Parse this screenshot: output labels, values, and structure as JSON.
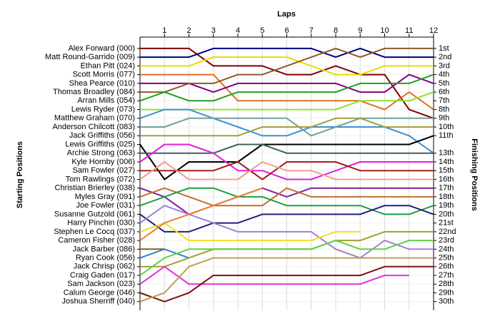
{
  "chart_data": {
    "type": "lap",
    "title": "Laps",
    "y_label": "Starting Positions",
    "y2_label": "Finishing Positions",
    "x": [
      0,
      1,
      2,
      3,
      4,
      5,
      6,
      7,
      8,
      9,
      10,
      11,
      12
    ],
    "xlim": [
      0,
      12
    ],
    "xticks": [
      1,
      2,
      3,
      4,
      5,
      6,
      7,
      8,
      9,
      10,
      11,
      12
    ],
    "ylim": [
      -0.3,
      31
    ],
    "yticks": [
      {
        "value": 1,
        "label": "1st"
      },
      {
        "value": 2,
        "label": "2nd"
      },
      {
        "value": 3,
        "label": "3rd"
      },
      {
        "value": 4,
        "label": "4th"
      },
      {
        "value": 5,
        "label": "5th"
      },
      {
        "value": 6,
        "label": "6th"
      },
      {
        "value": 7,
        "label": "7th"
      },
      {
        "value": 8,
        "label": "8th"
      },
      {
        "value": 9,
        "label": "9th"
      },
      {
        "value": 10,
        "label": "10th"
      },
      {
        "value": 11,
        "label": "11th"
      },
      {
        "value": 13,
        "label": "13th"
      },
      {
        "value": 14,
        "label": "14th"
      },
      {
        "value": 15,
        "label": "15th"
      },
      {
        "value": 16,
        "label": "16th"
      },
      {
        "value": 17,
        "label": "17th"
      },
      {
        "value": 18,
        "label": "18th"
      },
      {
        "value": 19,
        "label": "19th"
      },
      {
        "value": 20,
        "label": "20th"
      },
      {
        "value": 21,
        "label": "21st"
      },
      {
        "value": 22,
        "label": "22nd"
      },
      {
        "value": 23,
        "label": "23rd"
      },
      {
        "value": 24,
        "label": "24th"
      },
      {
        "value": 25,
        "label": "25th"
      },
      {
        "value": 26,
        "label": "26th"
      },
      {
        "value": 27,
        "label": "27th"
      },
      {
        "value": 28,
        "label": "28th"
      },
      {
        "value": 29,
        "label": "29th"
      },
      {
        "value": 30,
        "label": "30th"
      }
    ],
    "grid": true,
    "series": [
      {
        "name": "Alex Forward (000)",
        "color": "#800000",
        "values": [
          1,
          1,
          1,
          3,
          3,
          3,
          4,
          4,
          3,
          4,
          4,
          8,
          9
        ]
      },
      {
        "name": "Matt Round-Garrido (009)",
        "color": "#000080",
        "values": [
          2,
          2,
          2,
          1,
          1,
          1,
          1,
          1,
          2,
          1,
          2,
          2,
          2
        ]
      },
      {
        "name": "Ethan Pitt (024)",
        "color": "#e0e000",
        "values": [
          3,
          3,
          3,
          2,
          2,
          2,
          2,
          3,
          4,
          4,
          3,
          3,
          3
        ]
      },
      {
        "name": "Scott Morris (077)",
        "color": "#e07020",
        "values": [
          4,
          4,
          4,
          4,
          7,
          7,
          7,
          7,
          7,
          7,
          8,
          6,
          8
        ]
      },
      {
        "name": "Shea Pearce (010)",
        "color": "#800080",
        "values": [
          5,
          5,
          5,
          6,
          5,
          5,
          5,
          5,
          5,
          6,
          6,
          4,
          5
        ]
      },
      {
        "name": "Thomas Broadley (084)",
        "color": "#8b5a2b",
        "values": [
          6,
          6,
          5,
          5,
          4,
          4,
          3,
          2,
          1,
          2,
          1,
          1,
          1
        ]
      },
      {
        "name": "Arran Mills (054)",
        "color": "#20a020",
        "values": [
          7,
          6,
          7,
          7,
          6,
          6,
          6,
          6,
          6,
          5,
          5,
          5,
          4
        ]
      },
      {
        "name": "Lewis Ryder (073)",
        "color": "#90e030",
        "values": [
          8,
          8,
          8,
          8,
          8,
          8,
          8,
          8,
          8,
          7,
          7,
          7,
          6
        ]
      },
      {
        "name": "Matthew Graham (070)",
        "color": "#4090d0",
        "values": [
          9,
          8,
          8,
          9,
          10,
          11,
          11,
          10,
          10,
          10,
          10,
          11,
          13
        ]
      },
      {
        "name": "Anderson Chilcott (083)",
        "color": "#70a0a0",
        "values": [
          10,
          10,
          9,
          9,
          9,
          9,
          9,
          11,
          10,
          9,
          9,
          9,
          9
        ]
      },
      {
        "name": "Jack Griffiths (056)",
        "color": "#a0a040",
        "values": [
          11,
          11,
          11,
          11,
          11,
          10,
          10,
          10,
          9,
          9,
          10,
          10,
          10
        ]
      },
      {
        "name": "Lewis Griffiths (025)",
        "color": "#000000",
        "values": [
          12,
          16,
          14,
          14,
          14,
          12,
          12,
          12,
          12,
          12,
          12,
          12,
          11
        ]
      },
      {
        "name": "Archie Strong (063)",
        "color": "#406060",
        "values": [
          13,
          13,
          13,
          13,
          12,
          12,
          13,
          13,
          13,
          13,
          13,
          13,
          13
        ]
      },
      {
        "name": "Kyle Hornby (006)",
        "color": "#e020e0",
        "values": [
          14,
          12,
          12,
          13,
          15,
          15,
          16,
          16,
          15,
          14,
          14,
          14,
          14
        ]
      },
      {
        "name": "Sam Fowler (027)",
        "color": "#a02020",
        "values": [
          15,
          15,
          15,
          15,
          14,
          16,
          14,
          14,
          14,
          15,
          15,
          15,
          15
        ]
      },
      {
        "name": "Tom Rawlings (072)",
        "color": "#f0a090",
        "values": [
          16,
          14,
          16,
          16,
          16,
          14,
          15,
          15,
          16,
          16,
          16,
          16,
          16
        ]
      },
      {
        "name": "Christian Brierley (038)",
        "color": "#8020a0",
        "values": [
          17,
          18,
          20,
          19,
          18,
          17,
          18,
          17,
          17,
          17,
          17,
          17,
          17
        ]
      },
      {
        "name": "Myles Gray (091)",
        "color": "#c07030",
        "values": [
          18,
          17,
          18,
          19,
          19,
          19,
          17,
          18,
          18,
          18,
          18,
          18,
          18
        ]
      },
      {
        "name": "Joe Fowler (031)",
        "color": "#20a040",
        "values": [
          19,
          18,
          17,
          17,
          18,
          18,
          19,
          19,
          19,
          19,
          20,
          20,
          19
        ]
      },
      {
        "name": "Susanne Gutzold (061)",
        "color": "#202080",
        "values": [
          20,
          22,
          22,
          21,
          21,
          20,
          20,
          20,
          20,
          20,
          19,
          19,
          20
        ]
      },
      {
        "name": "Harry Pinchin (030)",
        "color": "#a080d0",
        "values": [
          21,
          19,
          20,
          21,
          22,
          22,
          22,
          22,
          24,
          25,
          23,
          24,
          24
        ]
      },
      {
        "name": "Stephen Le Cocq (037)",
        "color": "#f0e020",
        "values": [
          22,
          21,
          23,
          23,
          23,
          23,
          23,
          23,
          22,
          22,
          null,
          null,
          null
        ]
      },
      {
        "name": "Cameron Fisher (028)",
        "color": "#f08030",
        "values": [
          23,
          21,
          20,
          19,
          18,
          17,
          null,
          null,
          null,
          null,
          null,
          null,
          null
        ]
      },
      {
        "name": "Jack Barber (086)",
        "color": "#806020",
        "values": [
          24,
          24,
          null,
          null,
          null,
          null,
          null,
          null,
          null,
          null,
          null,
          null,
          null
        ]
      },
      {
        "name": "Ryan Cook (056)",
        "color": "#3080d0",
        "values": [
          25,
          24,
          25,
          null,
          null,
          null,
          null,
          null,
          null,
          null,
          null,
          null,
          null
        ]
      },
      {
        "name": "Jack Chrisp (062)",
        "color": "#a0a030",
        "values": [
          26,
          26,
          25,
          24,
          24,
          24,
          24,
          24,
          23,
          23,
          22,
          22,
          22
        ]
      },
      {
        "name": "Craig Gaden (017)",
        "color": "#60d040",
        "values": [
          27,
          25,
          24,
          24,
          24,
          24,
          24,
          24,
          23,
          24,
          24,
          23,
          23
        ]
      },
      {
        "name": "Sam Jackson (023)",
        "color": "#e030e0",
        "values": [
          28,
          26,
          28,
          28,
          28,
          28,
          28,
          28,
          28,
          28,
          27,
          27,
          null
        ]
      },
      {
        "name": "Calum George (046)",
        "color": "#801010",
        "values": [
          29,
          30,
          29,
          27,
          27,
          27,
          27,
          27,
          27,
          27,
          26,
          26,
          26
        ]
      },
      {
        "name": "Joshua Sherriff (040)",
        "color": "#c0a050",
        "values": [
          30,
          29,
          26,
          25,
          25,
          25,
          25,
          25,
          25,
          25,
          25,
          25,
          25
        ]
      }
    ]
  }
}
